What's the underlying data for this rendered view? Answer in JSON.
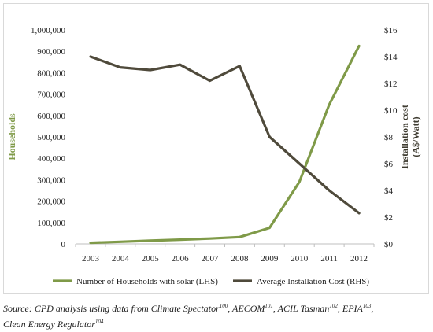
{
  "chart_data": {
    "type": "line",
    "categories": [
      "2003",
      "2004",
      "2005",
      "2006",
      "2007",
      "2008",
      "2009",
      "2010",
      "2011",
      "2012"
    ],
    "series": [
      {
        "name": "Number of Households with solar (LHS)",
        "axis": "left",
        "color": "#7f9a48",
        "values": [
          5000,
          10000,
          15000,
          20000,
          25000,
          32000,
          75000,
          290000,
          650000,
          925000
        ]
      },
      {
        "name": "Average Installation Cost (RHS)",
        "axis": "right",
        "color": "#4f4a3b",
        "values": [
          14.0,
          13.2,
          13.0,
          13.4,
          12.2,
          13.3,
          8.0,
          6.0,
          4.0,
          2.3
        ]
      }
    ],
    "left_axis": {
      "label": "Households",
      "range": [
        0,
        1000000
      ],
      "ticks": [
        0,
        100000,
        200000,
        300000,
        400000,
        500000,
        600000,
        700000,
        800000,
        900000,
        1000000
      ],
      "tick_labels": [
        "0",
        "100,000",
        "200,000",
        "300,000",
        "400,000",
        "500,000",
        "600,000",
        "700,000",
        "800,000",
        "900,000",
        "1,000,000"
      ],
      "color": "#7f9a48"
    },
    "right_axis": {
      "label_line1": "Installation cost",
      "label_line2": "(A$/Watt)",
      "range": [
        0,
        16
      ],
      "ticks": [
        0,
        2,
        4,
        6,
        8,
        10,
        12,
        14,
        16
      ],
      "tick_labels": [
        "$0",
        "$2",
        "$4",
        "$6",
        "$8",
        "$10",
        "$12",
        "$14",
        "$16"
      ],
      "color": "#3d3a2f"
    },
    "grid": false,
    "legend_position": "bottom"
  },
  "source_note": {
    "prefix": "Source: CPD analysis using data from Climate Spectator",
    "sup1": "100",
    "part2": ", AECOM",
    "sup2": "101",
    "part3": ", ACIL Tasman",
    "sup3": "102",
    "part4": ", EPIA",
    "sup4": "103",
    "part5": ",",
    "part6": "Clean Energy Regulator",
    "sup5": "104"
  }
}
